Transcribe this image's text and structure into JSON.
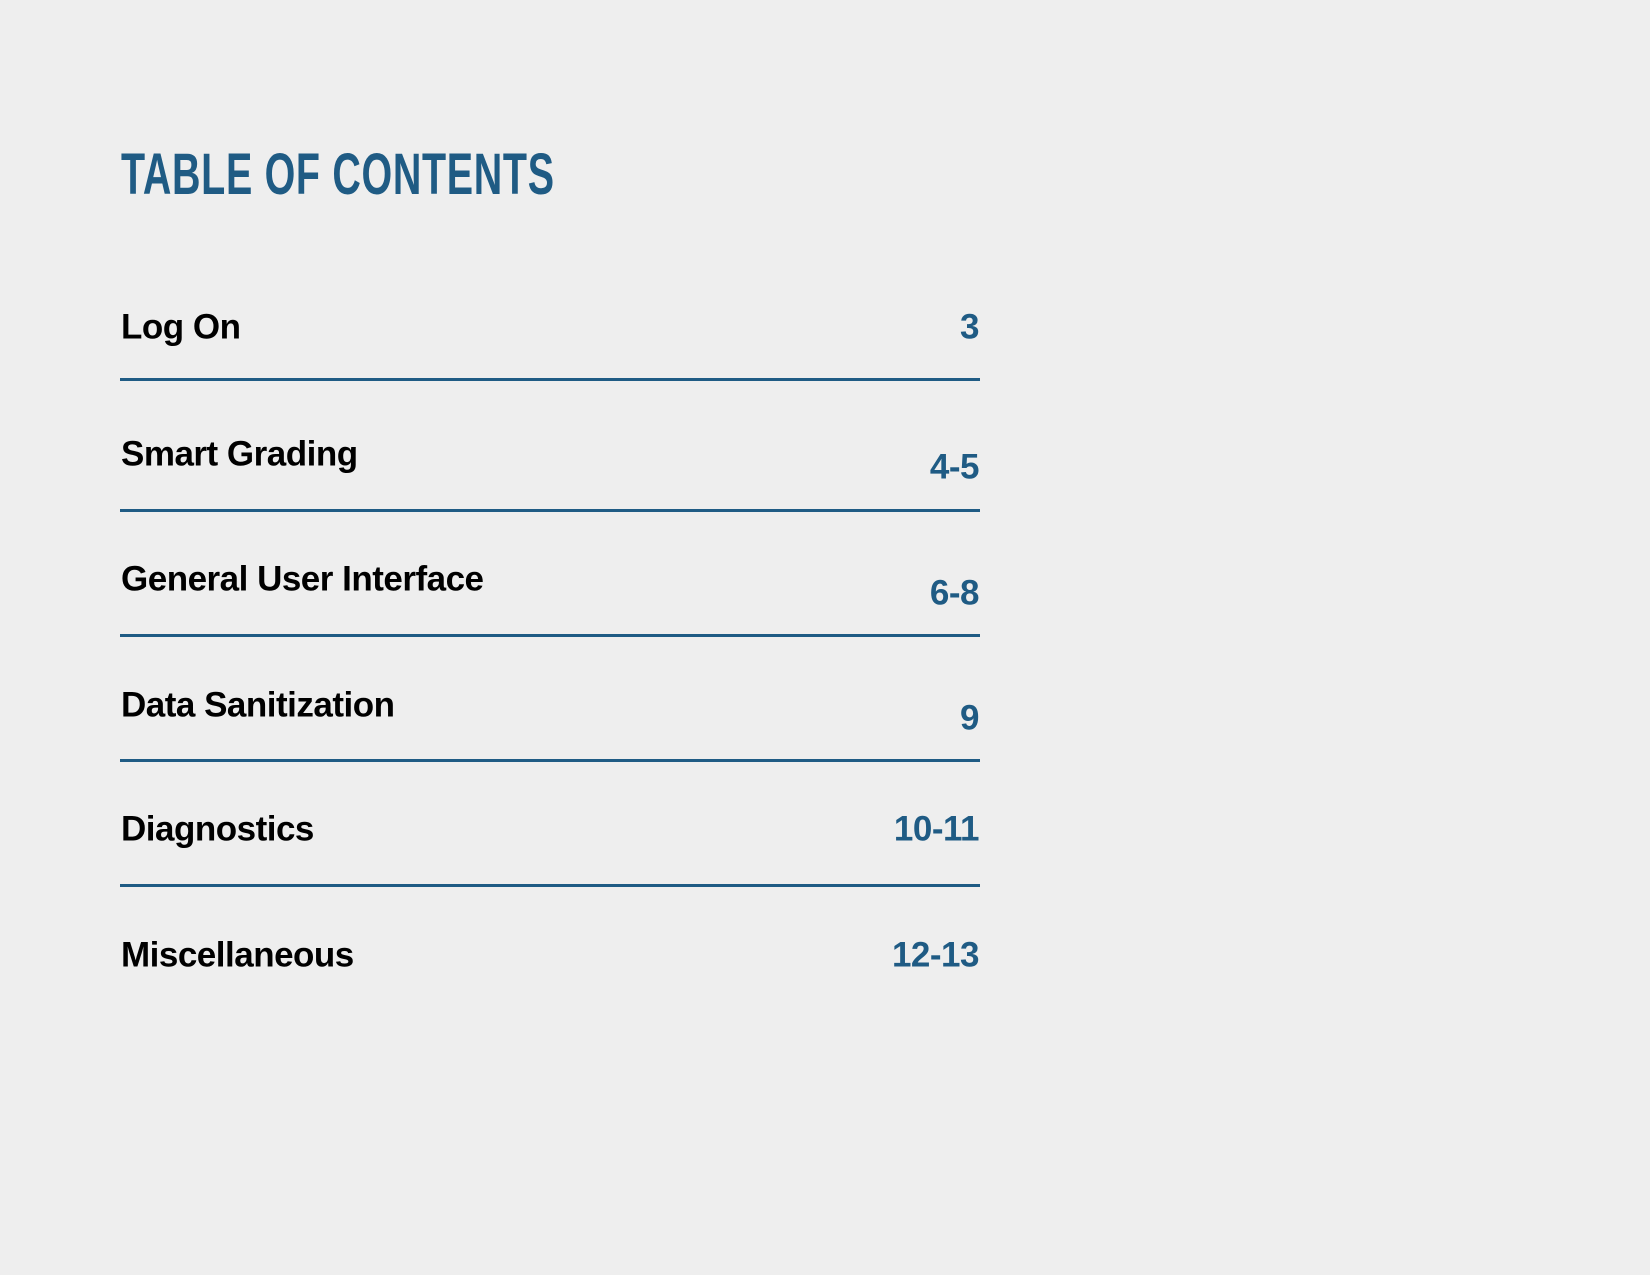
{
  "title": "TABLE OF CONTENTS",
  "accent_color": "#1f5b84",
  "entries": [
    {
      "label": "Log On",
      "pages": "3"
    },
    {
      "label": "Smart Grading",
      "pages": "4-5"
    },
    {
      "label": "General User Interface",
      "pages": "6-8"
    },
    {
      "label": "Data Sanitization",
      "pages": "9"
    },
    {
      "label": "Diagnostics",
      "pages": "10-11"
    },
    {
      "label": "Miscellaneous",
      "pages": "12-13"
    }
  ]
}
